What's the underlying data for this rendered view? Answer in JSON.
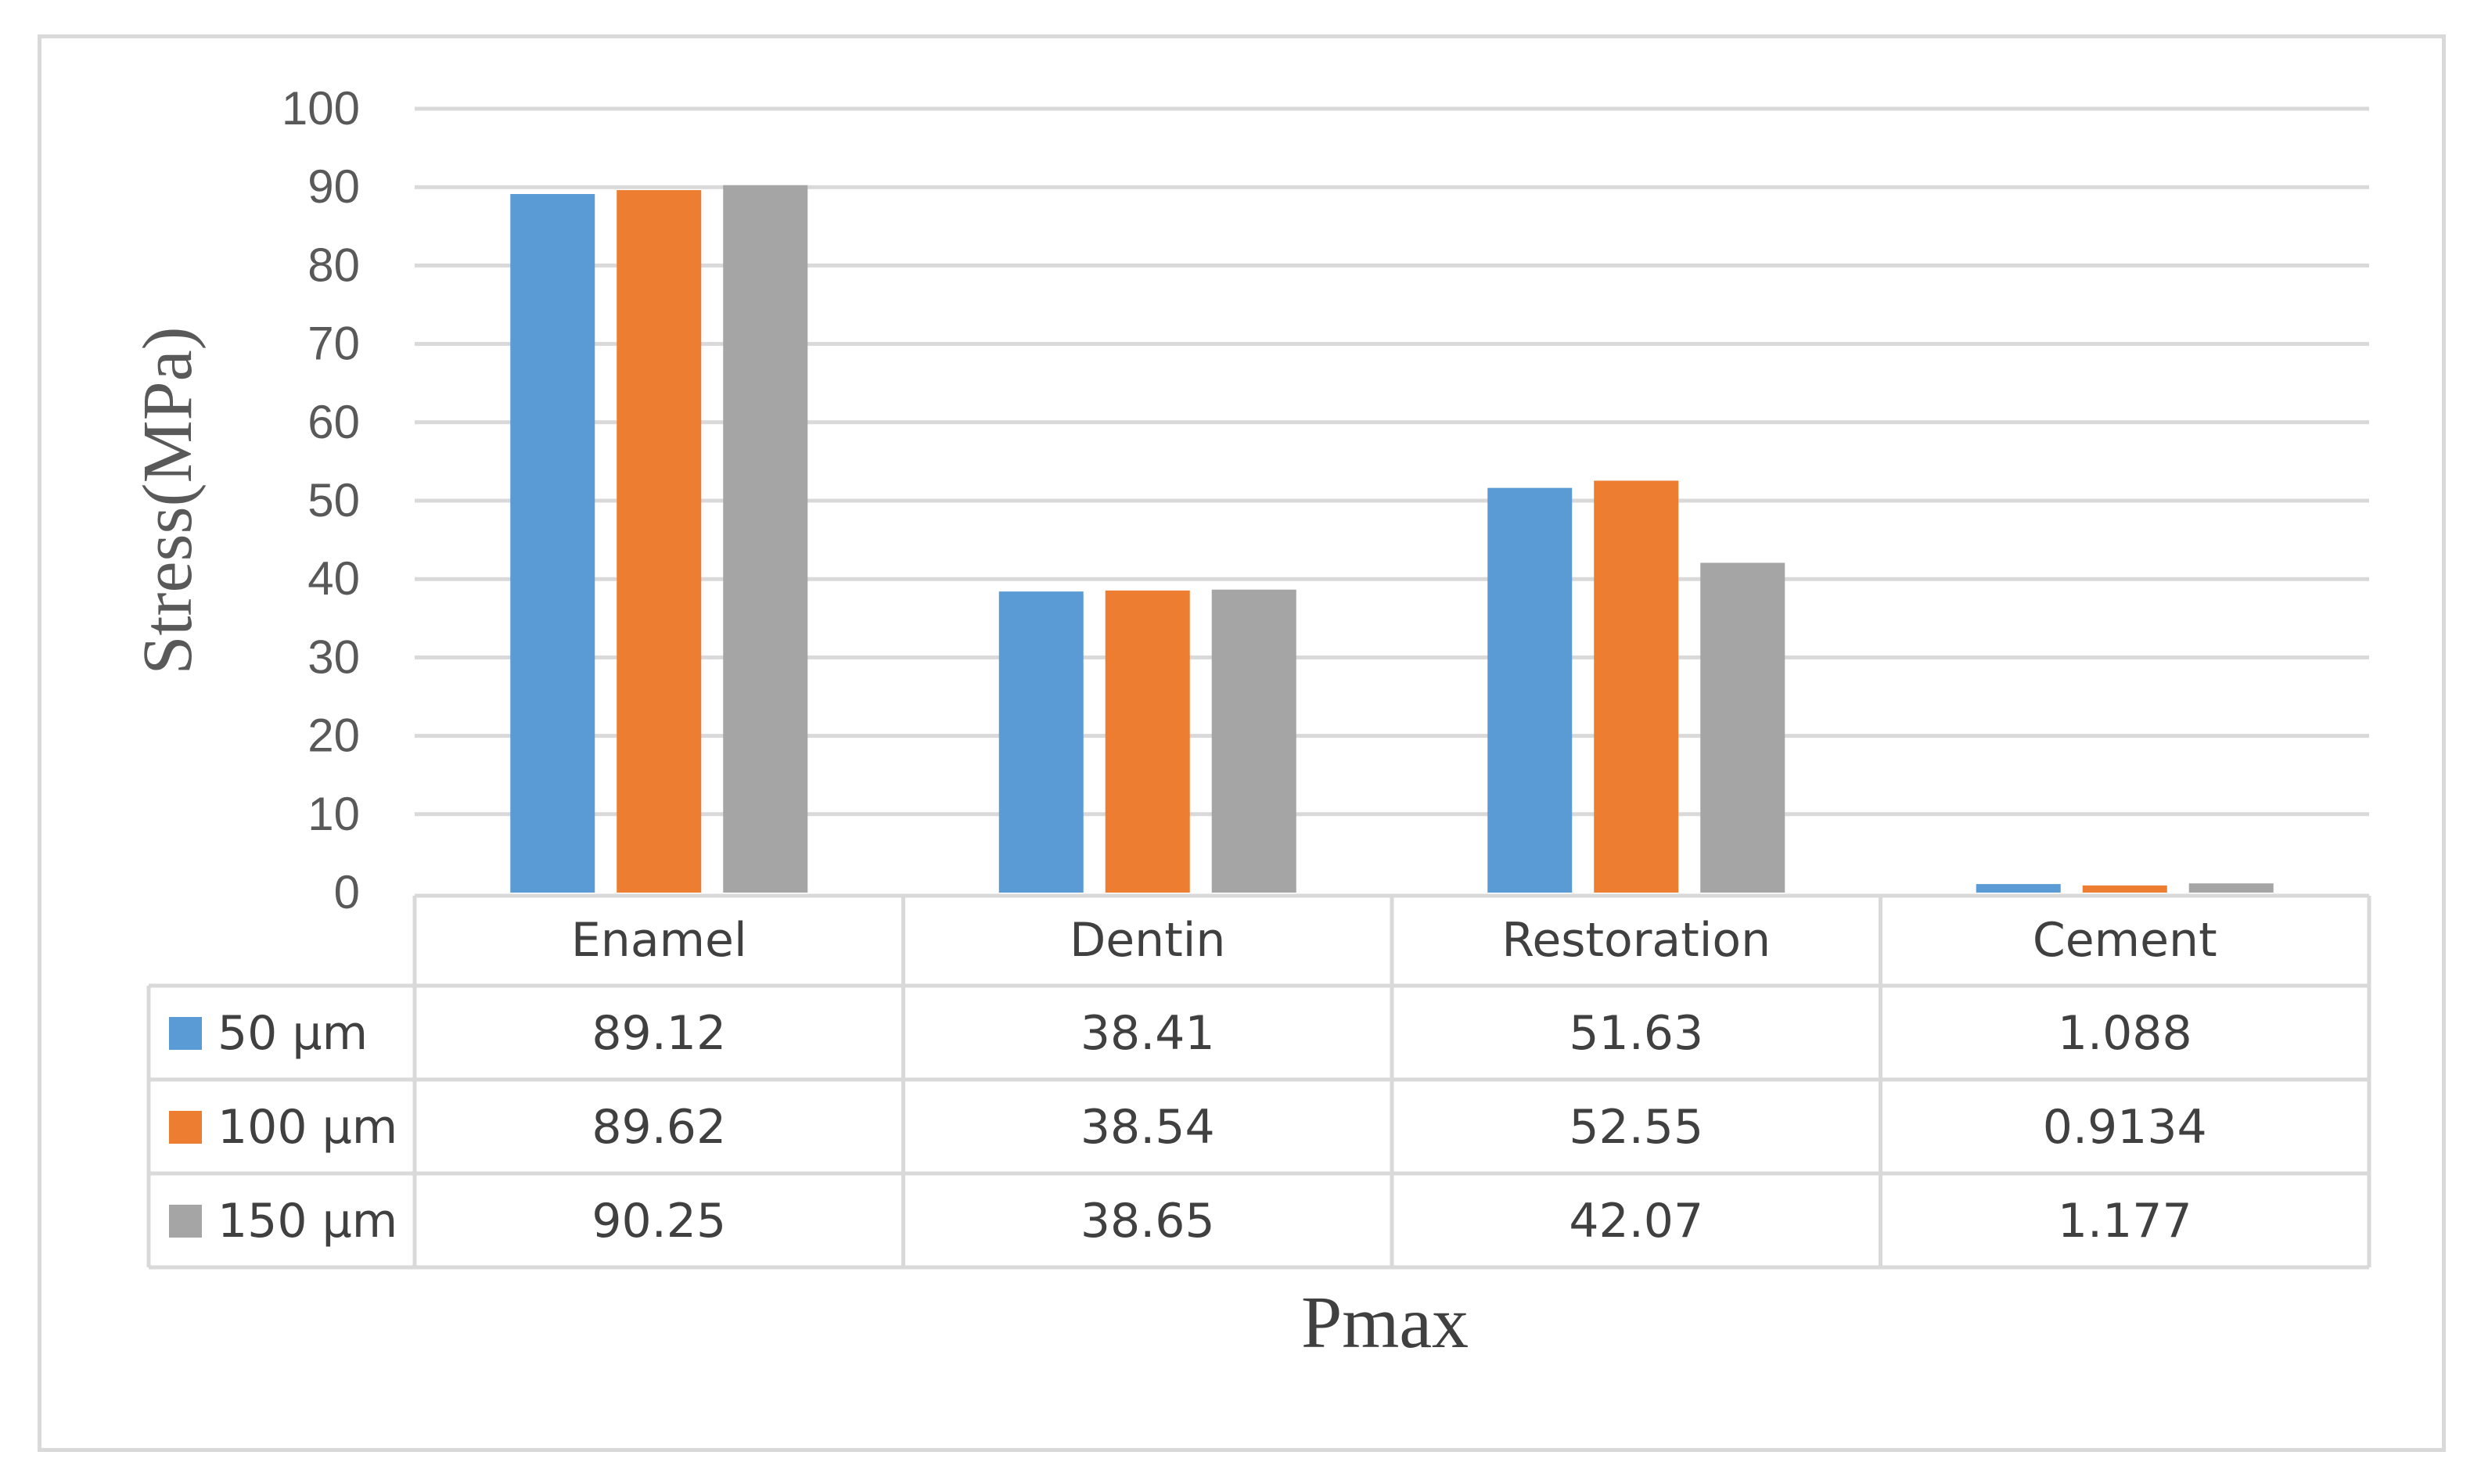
{
  "chart_data": {
    "type": "bar",
    "title": "",
    "xlabel": "Pmax",
    "ylabel": "Stress(MPa)",
    "ylim": [
      0,
      100
    ],
    "yticks": [
      "0",
      "10",
      "20",
      "30",
      "40",
      "50",
      "60",
      "70",
      "80",
      "90",
      "100"
    ],
    "grid": true,
    "legend": "data-table",
    "categories": [
      "Enamel",
      "Dentin",
      "Restoration",
      "Cement"
    ],
    "series": [
      {
        "name": "50 µm",
        "color": "#5b9bd5",
        "values": [
          89.12,
          38.41,
          51.63,
          1.088
        ],
        "labels": [
          "89.12",
          "38.41",
          "51.63",
          "1.088"
        ]
      },
      {
        "name": "100 µm",
        "color": "#ed7d31",
        "values": [
          89.62,
          38.54,
          52.55,
          0.9134
        ],
        "labels": [
          "89.62",
          "38.54",
          "52.55",
          "0.9134"
        ]
      },
      {
        "name": "150 µm",
        "color": "#a5a5a5",
        "values": [
          90.25,
          38.65,
          42.07,
          1.177
        ],
        "labels": [
          "90.25",
          "38.65",
          "42.07",
          "1.177"
        ]
      }
    ]
  }
}
